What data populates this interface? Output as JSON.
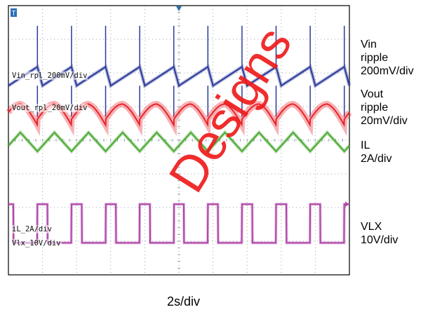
{
  "chart_data": {
    "type": "line",
    "title": "",
    "xlabel": "2s/div",
    "grid": true,
    "divisions": {
      "x": 10,
      "y": 8
    },
    "series": [
      {
        "name": "Vin ripple 200mV/div",
        "key": "vin",
        "color": "#2b3a9a",
        "center_div": 5.9,
        "shape": "sawtooth_spike",
        "amplitude_div": 0.28,
        "period_div": 1.0,
        "phase_div": 0.85
      },
      {
        "name": "Vout ripple 20mV/div",
        "key": "vout",
        "color": "#e8232b",
        "center_div": 4.85,
        "shape": "rounded_sawtooth",
        "amplitude_div": 0.25,
        "period_div": 1.0,
        "phase_div": 0.85
      },
      {
        "name": "IL 2A/div",
        "key": "il",
        "color": "#4aa832",
        "center_div": 3.95,
        "shape": "triangle",
        "amplitude_div": 0.28,
        "period_div": 1.0,
        "phase_div": 0.85
      },
      {
        "name": "VLX 10V/div",
        "key": "vlx",
        "color": "#b046a8",
        "high_div": 2.1,
        "low_div": 0.95,
        "shape": "pulse",
        "duty": 0.3,
        "period_div": 1.0,
        "phase_div": 0.85
      }
    ]
  },
  "labels": {
    "vin_side": "Vin\nripple\n200mV/div",
    "vout_side": "Vout\nripple\n20mV/div",
    "il_side": "IL\n2A/div",
    "vlx_side": "VLX\n10V/div",
    "vin_tag": "Vin_rpl_200mV/div",
    "vout_tag": "Vout_rpl_20mV/div",
    "il_tag": "iL_2A/div",
    "vlx_tag": "Vlx_10V/div",
    "trigger_marker": "T",
    "timebase": "2s/div",
    "watermark": "Designs"
  },
  "colors": {
    "grid": "#9aa4ad",
    "frame": "#000000",
    "trigger": "#2a6fb5"
  }
}
